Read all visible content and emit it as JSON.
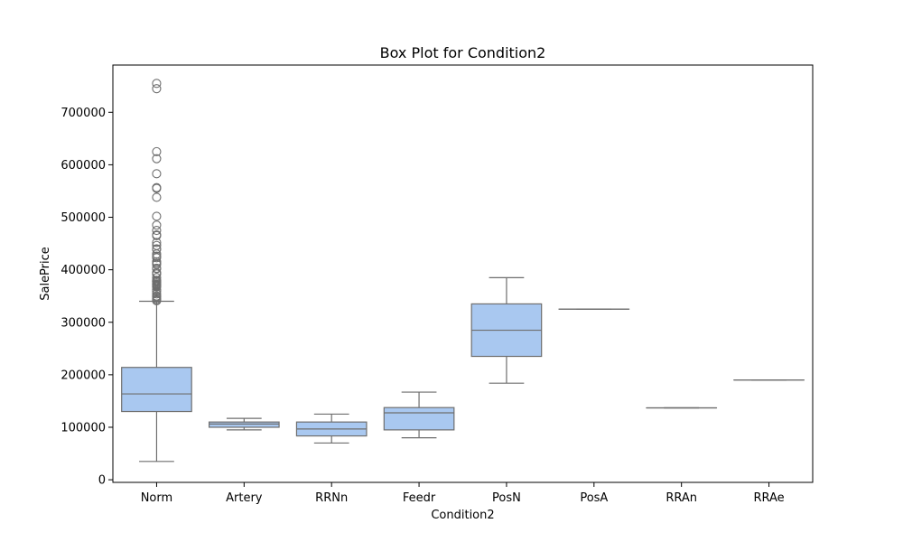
{
  "chart_data": {
    "type": "box",
    "title": "Box Plot for Condition2",
    "xlabel": "Condition2",
    "ylabel": "SalePrice",
    "ylim": [
      -5000,
      790000
    ],
    "yticks": [
      0,
      100000,
      200000,
      300000,
      400000,
      500000,
      600000,
      700000
    ],
    "box_color": "#a9c8f0",
    "line_color": "#6e6e6e",
    "categories": [
      "Norm",
      "Artery",
      "RRNn",
      "Feedr",
      "PosN",
      "PosA",
      "RRAn",
      "RRAe"
    ],
    "boxes": [
      {
        "category": "Norm",
        "whisker_low": 34900,
        "q1": 130000,
        "median": 163500,
        "q3": 214000,
        "whisker_high": 340000,
        "outliers": [
          755000,
          745000,
          625000,
          611657,
          582933,
          556581,
          555000,
          538000,
          501837,
          485000,
          475000,
          466500,
          465000,
          451950,
          446261,
          440000,
          438780,
          430000,
          426000,
          423000,
          415298,
          412500,
          410000,
          402861,
          402000,
          394617,
          392500,
          392000,
          385000,
          380000,
          378500,
          377500,
          377426,
          375000,
          372500,
          372402,
          370878,
          369900,
          368500,
          367294,
          361919,
          359100,
          354000,
          350000,
          348000,
          345000,
          342643,
          341000
        ]
      },
      {
        "category": "Artery",
        "whisker_low": 95000,
        "q1": 100000,
        "median": 106250,
        "q3": 110000,
        "whisker_high": 117000,
        "outliers": []
      },
      {
        "category": "RRNn",
        "whisker_low": 70000,
        "q1": 83500,
        "median": 96750,
        "q3": 110000,
        "whisker_high": 125000,
        "outliers": []
      },
      {
        "category": "Feedr",
        "whisker_low": 80000,
        "q1": 95000,
        "median": 127500,
        "q3": 137500,
        "whisker_high": 167000,
        "outliers": []
      },
      {
        "category": "PosN",
        "whisker_low": 184000,
        "q1": 235000,
        "median": 284875,
        "q3": 335000,
        "whisker_high": 385000,
        "outliers": []
      },
      {
        "category": "PosA",
        "whisker_low": 325000,
        "q1": 325000,
        "median": 325000,
        "q3": 325000,
        "whisker_high": 325000,
        "outliers": []
      },
      {
        "category": "RRAn",
        "whisker_low": 136905,
        "q1": 136905,
        "median": 136905,
        "q3": 136905,
        "whisker_high": 136905,
        "outliers": []
      },
      {
        "category": "RRAe",
        "whisker_low": 190000,
        "q1": 190000,
        "median": 190000,
        "q3": 190000,
        "whisker_high": 190000,
        "outliers": []
      }
    ],
    "grid": false,
    "legend": "none"
  }
}
